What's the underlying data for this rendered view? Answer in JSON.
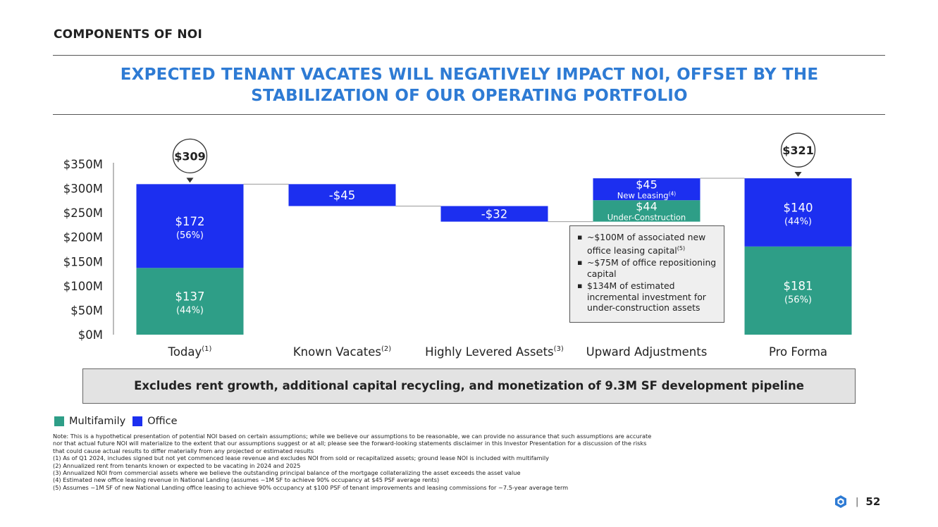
{
  "section_title": "COMPONENTS OF NOI",
  "headline": {
    "line1": "EXPECTED TENANT VACATES WILL NEGATIVELY IMPACT NOI, OFFSET BY THE",
    "line2": "STABILIZATION OF OUR OPERATING PORTFOLIO"
  },
  "colors": {
    "multifamily": "#2e9e87",
    "office": "#1c2ff0",
    "accent": "#2e7bd4"
  },
  "chart_data": {
    "type": "bar",
    "subtype": "waterfall",
    "ylim": [
      0,
      350
    ],
    "yticks": [
      0,
      50,
      100,
      150,
      200,
      250,
      300,
      350
    ],
    "ytick_labels": [
      "$0M",
      "$50M",
      "$100M",
      "$150M",
      "$200M",
      "$250M",
      "$300M",
      "$350M"
    ],
    "categories": [
      {
        "label": "Today",
        "sup": "(1)"
      },
      {
        "label": "Known Vacates",
        "sup": "(2)"
      },
      {
        "label": "Highly Levered Assets",
        "sup": "(3)"
      },
      {
        "label": "Upward Adjustments",
        "sup": ""
      },
      {
        "label": "Pro Forma",
        "sup": ""
      }
    ],
    "bars": [
      {
        "category": 0,
        "segments": [
          {
            "series": "Multifamily",
            "start": 0,
            "end": 137,
            "label": "$137",
            "sublabel": "(44%)"
          },
          {
            "series": "Office",
            "start": 137,
            "end": 309,
            "label": "$172",
            "sublabel": "(56%)"
          }
        ],
        "total": "$309"
      },
      {
        "category": 1,
        "segments": [
          {
            "series": "Office",
            "start": 264,
            "end": 309,
            "label": "-$45",
            "sublabel": ""
          }
        ]
      },
      {
        "category": 2,
        "segments": [
          {
            "series": "Office",
            "start": 232,
            "end": 264,
            "label": "-$32",
            "sublabel": ""
          }
        ]
      },
      {
        "category": 3,
        "segments": [
          {
            "series": "Multifamily",
            "start": 232,
            "end": 276,
            "label": "$44",
            "sublabel": "Under-Construction"
          },
          {
            "series": "Office",
            "start": 276,
            "end": 321,
            "label": "$45",
            "sublabel": "New Leasing",
            "sublabel_sup": "(4)"
          }
        ]
      },
      {
        "category": 4,
        "segments": [
          {
            "series": "Multifamily",
            "start": 0,
            "end": 181,
            "label": "$181",
            "sublabel": "(56%)"
          },
          {
            "series": "Office",
            "start": 181,
            "end": 321,
            "label": "$140",
            "sublabel": "(44%)"
          }
        ],
        "total": "$321"
      }
    ],
    "legend": [
      {
        "name": "Multifamily"
      },
      {
        "name": "Office"
      }
    ],
    "legend_position": "bottom-left"
  },
  "callout": {
    "items": [
      {
        "text": "~$100M of associated new office leasing capital",
        "sup": "(5)"
      },
      {
        "text": "~$75M of office repositioning capital",
        "sup": ""
      },
      {
        "text": "$134M of estimated incremental investment for under-construction assets",
        "sup": ""
      }
    ]
  },
  "exclusion_banner": "Excludes rent growth, additional capital recycling, and monetization of 9.3M SF development pipeline",
  "notes": [
    "Note: This is a hypothetical presentation of potential NOI based on certain assumptions; while we believe our assumptions to be reasonable, we can provide no assurance that such assumptions are accurate",
    "nor that actual future NOI will materialize to the extent that our assumptions suggest or at all; please see the forward-looking statements disclaimer in this Investor Presentation for a discussion of the risks",
    "that could cause actual results to differ materially from any projected or estimated results",
    "(1) As of Q1 2024, includes signed but not yet commenced lease revenue and excludes NOI from sold or recapitalized assets; ground lease NOI is included with multifamily",
    "(2) Annualized rent from tenants known or expected to be vacating in 2024 and 2025",
    "(3) Annualized NOI from commercial assets where we believe the outstanding principal balance of the mortgage collateralizing the asset exceeds the asset value",
    "(4) Estimated new office leasing revenue in National Landing (assumes ~1M SF to achieve 90% occupancy at $45 PSF average rents)",
    "(5) Assumes ~1M SF of new National Landing office leasing to achieve 90% occupancy at $100 PSF of tenant improvements and leasing commissions for ~7.5-year average term"
  ],
  "page_number": "52",
  "page_sep": "|"
}
